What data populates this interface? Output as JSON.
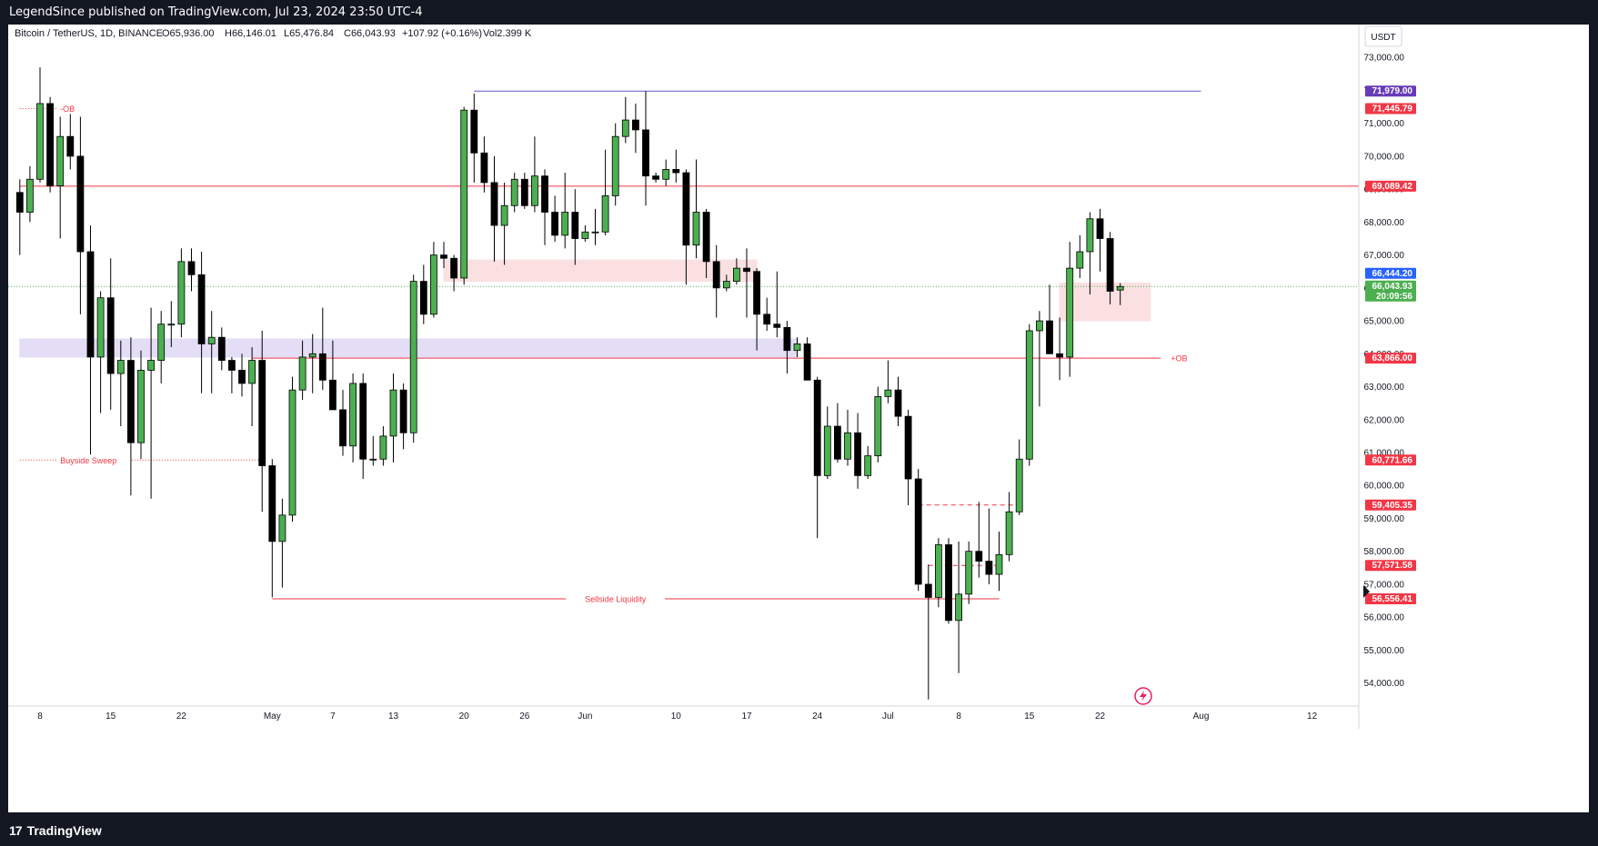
{
  "header": {
    "publish_line": "LegendSince published on TradingView.com, Jul 23, 2024 23:50 UTC-4"
  },
  "footer": {
    "brand": "TradingView",
    "logo": "17"
  },
  "legend": {
    "symbol": "Bitcoin / TetherUS, 1D, BINANCE",
    "open": "O65,936.00",
    "high": "H66,146.01",
    "low": "L65,476.84",
    "close": "C66,043.93",
    "change": "+107.92 (+0.16%)",
    "volume": "Vol2.399 K"
  },
  "colors": {
    "bull": "#4caf50",
    "bear": "#000000",
    "red_line": "#f23645",
    "blue_line": "#5b5bc4",
    "purple_zone": "#e3ddf5",
    "red_zone": "#fbe0e2",
    "current_price": "#4caf50",
    "blue_badge": "#2962ff",
    "purple_badge": "#673ab7"
  },
  "chart_data": {
    "type": "candlestick",
    "currency": "USDT",
    "ylim": [
      53300,
      74000
    ],
    "y_ticks": [
      "73,000.00",
      "72,000.00",
      "71,000.00",
      "70,000.00",
      "69,000.00",
      "68,000.00",
      "67,000.00",
      "66,000.00",
      "65,000.00",
      "64,000.00",
      "63,000.00",
      "62,000.00",
      "61,000.00",
      "60,000.00",
      "59,000.00",
      "58,000.00",
      "57,000.00",
      "56,000.00",
      "55,000.00",
      "54,000.00"
    ],
    "x_ticks": [
      {
        "label": "8",
        "date": "2024-04-08"
      },
      {
        "label": "15",
        "date": "2024-04-15"
      },
      {
        "label": "22",
        "date": "2024-04-22"
      },
      {
        "label": "May",
        "date": "2024-05-01"
      },
      {
        "label": "7",
        "date": "2024-05-07"
      },
      {
        "label": "13",
        "date": "2024-05-13"
      },
      {
        "label": "20",
        "date": "2024-05-20"
      },
      {
        "label": "26",
        "date": "2024-05-26"
      },
      {
        "label": "Jun",
        "date": "2024-06-01"
      },
      {
        "label": "10",
        "date": "2024-06-10"
      },
      {
        "label": "17",
        "date": "2024-06-17"
      },
      {
        "label": "24",
        "date": "2024-06-24"
      },
      {
        "label": "Jul",
        "date": "2024-07-01"
      },
      {
        "label": "8",
        "date": "2024-07-08"
      },
      {
        "label": "15",
        "date": "2024-07-15"
      },
      {
        "label": "22",
        "date": "2024-07-22"
      },
      {
        "label": "Aug",
        "date": "2024-08-01"
      },
      {
        "label": "12",
        "date": "2024-08-12"
      }
    ],
    "candles": [
      {
        "date": "2024-04-06",
        "o": 68900,
        "h": 69300,
        "l": 67000,
        "c": 68300
      },
      {
        "date": "2024-04-07",
        "o": 68300,
        "h": 69700,
        "l": 68000,
        "c": 69300
      },
      {
        "date": "2024-04-08",
        "o": 69300,
        "h": 72700,
        "l": 69200,
        "c": 71600
      },
      {
        "date": "2024-04-09",
        "o": 71600,
        "h": 71800,
        "l": 68900,
        "c": 69100
      },
      {
        "date": "2024-04-10",
        "o": 69100,
        "h": 71200,
        "l": 67500,
        "c": 70600
      },
      {
        "date": "2024-04-11",
        "o": 70600,
        "h": 71300,
        "l": 69600,
        "c": 70000
      },
      {
        "date": "2024-04-12",
        "o": 70000,
        "h": 71200,
        "l": 65200,
        "c": 67100
      },
      {
        "date": "2024-04-13",
        "o": 67100,
        "h": 67900,
        "l": 60800,
        "c": 63900
      },
      {
        "date": "2024-04-14",
        "o": 63900,
        "h": 65900,
        "l": 62200,
        "c": 65700
      },
      {
        "date": "2024-04-15",
        "o": 65700,
        "h": 66900,
        "l": 62300,
        "c": 63400
      },
      {
        "date": "2024-04-16",
        "o": 63400,
        "h": 64400,
        "l": 61800,
        "c": 63800
      },
      {
        "date": "2024-04-17",
        "o": 63800,
        "h": 64500,
        "l": 59700,
        "c": 61300
      },
      {
        "date": "2024-04-18",
        "o": 61300,
        "h": 64100,
        "l": 60800,
        "c": 63500
      },
      {
        "date": "2024-04-19",
        "o": 63500,
        "h": 65400,
        "l": 59600,
        "c": 63800
      },
      {
        "date": "2024-04-20",
        "o": 63800,
        "h": 65300,
        "l": 63100,
        "c": 64900
      },
      {
        "date": "2024-04-21",
        "o": 64900,
        "h": 65600,
        "l": 64200,
        "c": 64900
      },
      {
        "date": "2024-04-22",
        "o": 64900,
        "h": 67200,
        "l": 64500,
        "c": 66800
      },
      {
        "date": "2024-04-23",
        "o": 66800,
        "h": 67200,
        "l": 65900,
        "c": 66400
      },
      {
        "date": "2024-04-24",
        "o": 66400,
        "h": 67100,
        "l": 62800,
        "c": 64300
      },
      {
        "date": "2024-04-25",
        "o": 64300,
        "h": 65300,
        "l": 62800,
        "c": 64500
      },
      {
        "date": "2024-04-26",
        "o": 64500,
        "h": 64800,
        "l": 63500,
        "c": 63800
      },
      {
        "date": "2024-04-27",
        "o": 63800,
        "h": 63900,
        "l": 62800,
        "c": 63500
      },
      {
        "date": "2024-04-28",
        "o": 63500,
        "h": 64000,
        "l": 62700,
        "c": 63100
      },
      {
        "date": "2024-04-29",
        "o": 63100,
        "h": 64200,
        "l": 61800,
        "c": 63800
      },
      {
        "date": "2024-04-30",
        "o": 63800,
        "h": 64700,
        "l": 59200,
        "c": 60600
      },
      {
        "date": "2024-05-01",
        "o": 60600,
        "h": 60800,
        "l": 56600,
        "c": 58300
      },
      {
        "date": "2024-05-02",
        "o": 58300,
        "h": 59600,
        "l": 56900,
        "c": 59100
      },
      {
        "date": "2024-05-03",
        "o": 59100,
        "h": 63300,
        "l": 58900,
        "c": 62900
      },
      {
        "date": "2024-05-04",
        "o": 62900,
        "h": 64400,
        "l": 62600,
        "c": 63900
      },
      {
        "date": "2024-05-05",
        "o": 63900,
        "h": 64600,
        "l": 62800,
        "c": 64000
      },
      {
        "date": "2024-05-06",
        "o": 64000,
        "h": 65400,
        "l": 62900,
        "c": 63200
      },
      {
        "date": "2024-05-07",
        "o": 63200,
        "h": 64400,
        "l": 62300,
        "c": 62300
      },
      {
        "date": "2024-05-08",
        "o": 62300,
        "h": 62900,
        "l": 60900,
        "c": 61200
      },
      {
        "date": "2024-05-09",
        "o": 61200,
        "h": 63400,
        "l": 60700,
        "c": 63100
      },
      {
        "date": "2024-05-10",
        "o": 63100,
        "h": 63400,
        "l": 60200,
        "c": 60800
      },
      {
        "date": "2024-05-11",
        "o": 60800,
        "h": 61500,
        "l": 60600,
        "c": 60800
      },
      {
        "date": "2024-05-12",
        "o": 60800,
        "h": 61800,
        "l": 60600,
        "c": 61500
      },
      {
        "date": "2024-05-13",
        "o": 61500,
        "h": 63400,
        "l": 60700,
        "c": 62900
      },
      {
        "date": "2024-05-14",
        "o": 62900,
        "h": 63100,
        "l": 61100,
        "c": 61600
      },
      {
        "date": "2024-05-15",
        "o": 61600,
        "h": 66400,
        "l": 61300,
        "c": 66200
      },
      {
        "date": "2024-05-16",
        "o": 66200,
        "h": 66700,
        "l": 64900,
        "c": 65200
      },
      {
        "date": "2024-05-17",
        "o": 65200,
        "h": 67400,
        "l": 65100,
        "c": 67000
      },
      {
        "date": "2024-05-18",
        "o": 67000,
        "h": 67400,
        "l": 66600,
        "c": 66900
      },
      {
        "date": "2024-05-19",
        "o": 66900,
        "h": 67000,
        "l": 65900,
        "c": 66300
      },
      {
        "date": "2024-05-20",
        "o": 66300,
        "h": 71500,
        "l": 66100,
        "c": 71400
      },
      {
        "date": "2024-05-21",
        "o": 71400,
        "h": 71900,
        "l": 69200,
        "c": 70100
      },
      {
        "date": "2024-05-22",
        "o": 70100,
        "h": 70600,
        "l": 68900,
        "c": 69200
      },
      {
        "date": "2024-05-23",
        "o": 69200,
        "h": 70000,
        "l": 66800,
        "c": 67900
      },
      {
        "date": "2024-05-24",
        "o": 67900,
        "h": 69200,
        "l": 66700,
        "c": 68500
      },
      {
        "date": "2024-05-25",
        "o": 68500,
        "h": 69500,
        "l": 68300,
        "c": 69300
      },
      {
        "date": "2024-05-26",
        "o": 69300,
        "h": 69500,
        "l": 68400,
        "c": 68500
      },
      {
        "date": "2024-05-27",
        "o": 68500,
        "h": 70600,
        "l": 68300,
        "c": 69400
      },
      {
        "date": "2024-05-28",
        "o": 69400,
        "h": 69600,
        "l": 67300,
        "c": 68300
      },
      {
        "date": "2024-05-29",
        "o": 68300,
        "h": 68800,
        "l": 67400,
        "c": 67600
      },
      {
        "date": "2024-05-30",
        "o": 67600,
        "h": 69500,
        "l": 67200,
        "c": 68300
      },
      {
        "date": "2024-05-31",
        "o": 68300,
        "h": 69000,
        "l": 66700,
        "c": 67500
      },
      {
        "date": "2024-06-01",
        "o": 67500,
        "h": 67900,
        "l": 67400,
        "c": 67700
      },
      {
        "date": "2024-06-02",
        "o": 67700,
        "h": 68400,
        "l": 67300,
        "c": 67700
      },
      {
        "date": "2024-06-03",
        "o": 67700,
        "h": 70200,
        "l": 67600,
        "c": 68800
      },
      {
        "date": "2024-06-04",
        "o": 68800,
        "h": 71000,
        "l": 68500,
        "c": 70600
      },
      {
        "date": "2024-06-05",
        "o": 70600,
        "h": 71800,
        "l": 70400,
        "c": 71100
      },
      {
        "date": "2024-06-06",
        "o": 71100,
        "h": 71600,
        "l": 70100,
        "c": 70800
      },
      {
        "date": "2024-06-07",
        "o": 70800,
        "h": 71979,
        "l": 68500,
        "c": 69400
      },
      {
        "date": "2024-06-08",
        "o": 69400,
        "h": 69500,
        "l": 69200,
        "c": 69300
      },
      {
        "date": "2024-06-09",
        "o": 69300,
        "h": 69900,
        "l": 69100,
        "c": 69600
      },
      {
        "date": "2024-06-10",
        "o": 69600,
        "h": 70200,
        "l": 69200,
        "c": 69500
      },
      {
        "date": "2024-06-11",
        "o": 69500,
        "h": 69600,
        "l": 66100,
        "c": 67300
      },
      {
        "date": "2024-06-12",
        "o": 67300,
        "h": 69900,
        "l": 66900,
        "c": 68300
      },
      {
        "date": "2024-06-13",
        "o": 68300,
        "h": 68400,
        "l": 66300,
        "c": 66800
      },
      {
        "date": "2024-06-14",
        "o": 66800,
        "h": 67300,
        "l": 65100,
        "c": 66000
      },
      {
        "date": "2024-06-15",
        "o": 66000,
        "h": 66400,
        "l": 65900,
        "c": 66200
      },
      {
        "date": "2024-06-16",
        "o": 66200,
        "h": 66900,
        "l": 66100,
        "c": 66600
      },
      {
        "date": "2024-06-17",
        "o": 66600,
        "h": 67200,
        "l": 65100,
        "c": 66500
      },
      {
        "date": "2024-06-18",
        "o": 66500,
        "h": 66600,
        "l": 64100,
        "c": 65200
      },
      {
        "date": "2024-06-19",
        "o": 65200,
        "h": 65700,
        "l": 64700,
        "c": 64900
      },
      {
        "date": "2024-06-20",
        "o": 64900,
        "h": 66500,
        "l": 64500,
        "c": 64800
      },
      {
        "date": "2024-06-21",
        "o": 64800,
        "h": 65000,
        "l": 63400,
        "c": 64100
      },
      {
        "date": "2024-06-22",
        "o": 64100,
        "h": 64500,
        "l": 63900,
        "c": 64300
      },
      {
        "date": "2024-06-23",
        "o": 64300,
        "h": 64500,
        "l": 63200,
        "c": 63200
      },
      {
        "date": "2024-06-24",
        "o": 63200,
        "h": 63300,
        "l": 58400,
        "c": 60300
      },
      {
        "date": "2024-06-25",
        "o": 60300,
        "h": 62400,
        "l": 60200,
        "c": 61800
      },
      {
        "date": "2024-06-26",
        "o": 61800,
        "h": 62500,
        "l": 60700,
        "c": 60800
      },
      {
        "date": "2024-06-27",
        "o": 60800,
        "h": 62300,
        "l": 60600,
        "c": 61600
      },
      {
        "date": "2024-06-28",
        "o": 61600,
        "h": 62200,
        "l": 59900,
        "c": 60300
      },
      {
        "date": "2024-06-29",
        "o": 60300,
        "h": 61200,
        "l": 60200,
        "c": 60900
      },
      {
        "date": "2024-06-30",
        "o": 60900,
        "h": 63000,
        "l": 60700,
        "c": 62700
      },
      {
        "date": "2024-07-01",
        "o": 62700,
        "h": 63800,
        "l": 62500,
        "c": 62900
      },
      {
        "date": "2024-07-02",
        "o": 62900,
        "h": 63300,
        "l": 61800,
        "c": 62100
      },
      {
        "date": "2024-07-03",
        "o": 62100,
        "h": 62300,
        "l": 59400,
        "c": 60200
      },
      {
        "date": "2024-07-04",
        "o": 60200,
        "h": 60500,
        "l": 56800,
        "c": 57000
      },
      {
        "date": "2024-07-05",
        "o": 57000,
        "h": 57600,
        "l": 53500,
        "c": 56600
      },
      {
        "date": "2024-07-06",
        "o": 56600,
        "h": 58400,
        "l": 56300,
        "c": 58200
      },
      {
        "date": "2024-07-07",
        "o": 58200,
        "h": 58400,
        "l": 55800,
        "c": 55900
      },
      {
        "date": "2024-07-08",
        "o": 55900,
        "h": 58300,
        "l": 54300,
        "c": 56700
      },
      {
        "date": "2024-07-09",
        "o": 56700,
        "h": 58300,
        "l": 56400,
        "c": 58000
      },
      {
        "date": "2024-07-10",
        "o": 58000,
        "h": 59500,
        "l": 57200,
        "c": 57700
      },
      {
        "date": "2024-07-11",
        "o": 57700,
        "h": 59300,
        "l": 57000,
        "c": 57300
      },
      {
        "date": "2024-07-12",
        "o": 57300,
        "h": 58600,
        "l": 56800,
        "c": 57900
      },
      {
        "date": "2024-07-13",
        "o": 57900,
        "h": 59800,
        "l": 57700,
        "c": 59200
      },
      {
        "date": "2024-07-14",
        "o": 59200,
        "h": 61400,
        "l": 59100,
        "c": 60800
      },
      {
        "date": "2024-07-15",
        "o": 60800,
        "h": 64900,
        "l": 60600,
        "c": 64700
      },
      {
        "date": "2024-07-16",
        "o": 64700,
        "h": 65300,
        "l": 62400,
        "c": 65000
      },
      {
        "date": "2024-07-17",
        "o": 65000,
        "h": 66100,
        "l": 64000,
        "c": 64000
      },
      {
        "date": "2024-07-18",
        "o": 64000,
        "h": 65100,
        "l": 63200,
        "c": 63900
      },
      {
        "date": "2024-07-19",
        "o": 63900,
        "h": 67400,
        "l": 63300,
        "c": 66600
      },
      {
        "date": "2024-07-20",
        "o": 66600,
        "h": 67600,
        "l": 66300,
        "c": 67100
      },
      {
        "date": "2024-07-21",
        "o": 67100,
        "h": 68300,
        "l": 65800,
        "c": 68100
      },
      {
        "date": "2024-07-22",
        "o": 68100,
        "h": 68400,
        "l": 66500,
        "c": 67500
      },
      {
        "date": "2024-07-23",
        "o": 67500,
        "h": 67700,
        "l": 65500,
        "c": 65900
      },
      {
        "date": "2024-07-24",
        "o": 65936,
        "h": 66146,
        "l": 65477,
        "c": 66044
      }
    ],
    "levels": [
      {
        "name": "blue-high",
        "price": 71979,
        "from": "2024-05-21",
        "to": "2024-08-01",
        "style": "solid",
        "color": "#5b5bc4"
      },
      {
        "name": "-OB",
        "price": 71446,
        "from": "2024-04-06",
        "to": "2024-04-10",
        "style": "dotted",
        "color": "#f23645"
      },
      {
        "name": "red-69089",
        "price": 69089,
        "from": "2024-04-06",
        "to": "2024-08-19",
        "style": "solid",
        "color": "#f23645"
      },
      {
        "name": "+OB",
        "price": 63866,
        "from": "2024-04-29",
        "to": "2024-07-28",
        "style": "solid",
        "color": "#f23645"
      },
      {
        "name": "Buyside Sweep",
        "price": 60772,
        "from": "2024-04-06",
        "to": "2024-04-30",
        "style": "dotted",
        "color": "#f23645"
      },
      {
        "name": "dashed-59405",
        "price": 59405,
        "from": "2024-07-04",
        "to": "2024-07-14",
        "style": "dashed",
        "color": "#f23645"
      },
      {
        "name": "dashed-57572",
        "price": 57572,
        "from": "2024-07-05",
        "to": "2024-07-12",
        "style": "dashed",
        "color": "#f23645"
      },
      {
        "name": "Sellside Liquidity",
        "price": 56556,
        "from": "2024-05-01",
        "to": "2024-07-12",
        "style": "solid",
        "color": "#f23645"
      }
    ],
    "line_labels": [
      {
        "text": "-OB",
        "price": 71446,
        "date": "2024-04-10"
      },
      {
        "text": "Buyside Sweep",
        "price": 60772,
        "date": "2024-04-10"
      },
      {
        "text": "Sellside Liquidity",
        "price": 56556,
        "date": "2024-06-04"
      },
      {
        "text": "+OB",
        "price": 63866,
        "date": "2024-07-29"
      }
    ],
    "zones": [
      {
        "name": "purple-zone",
        "from": "2024-04-06",
        "to": "2024-06-22",
        "top": 64450,
        "bottom": 63900,
        "color": "#e3ddf5"
      },
      {
        "name": "red-zone-june",
        "from": "2024-05-18",
        "to": "2024-06-18",
        "top": 66850,
        "bottom": 66200,
        "color": "#fbe0e2"
      },
      {
        "name": "red-zone-july",
        "from": "2024-07-18",
        "to": "2024-07-27",
        "top": 66150,
        "bottom": 65000,
        "color": "#fbe0e2"
      }
    ],
    "current_price": {
      "value": 66043.93,
      "label": "66,043.93",
      "countdown": "20:09:56"
    },
    "price_labels": [
      {
        "price": 71979,
        "text": "71,979.00",
        "color": "#673ab7"
      },
      {
        "price": 71446,
        "text": "71,445.79",
        "color": "#f23645"
      },
      {
        "price": 69089,
        "text": "69,089.42",
        "color": "#f23645"
      },
      {
        "price": 66444,
        "text": "66,444.20",
        "color": "#2962ff"
      },
      {
        "price": 63866,
        "text": "63,866.00",
        "color": "#f23645"
      },
      {
        "price": 60772,
        "text": "60,771.66",
        "color": "#f23645"
      },
      {
        "price": 59405,
        "text": "59,405.35",
        "color": "#f23645"
      },
      {
        "price": 57572,
        "text": "57,571.58",
        "color": "#f23645"
      },
      {
        "price": 56556,
        "text": "56,556.41",
        "color": "#f23645"
      }
    ]
  },
  "icons": {
    "lightning": "lightning-icon",
    "tv_logo": "tradingview-logo-icon"
  }
}
